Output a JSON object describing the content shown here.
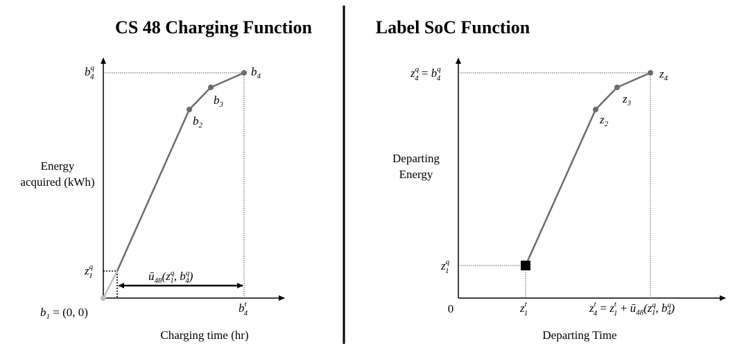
{
  "left_panel": {
    "title": "CS 48 Charging Function",
    "y_axis_label_line1": "Energy",
    "y_axis_label_line2": "acquired (kWh)",
    "x_axis_label": "Charging time (hr)",
    "origin_label": "b1 = (0,0)",
    "point_labels": [
      "b2",
      "b3",
      "b4"
    ],
    "y_tick_top": "b4^q",
    "y_tick_low": "z1^q",
    "x_tick": "b4^t",
    "duration_label": "ū48(z1^q, b4^q)"
  },
  "right_panel": {
    "title": "Label SoC Function",
    "y_axis_label_line1": "Departing",
    "y_axis_label_line2": "Energy",
    "x_axis_label": "Departing Time",
    "origin_label": "0",
    "point_labels": [
      "z2",
      "z3",
      "z4"
    ],
    "y_tick_top": "z4^q = b4^q",
    "y_tick_low": "z1^q",
    "x_tick_1": "z1^t",
    "x_tick_2": "z4^t = z1^t + ū48(z1^q, b4^q)"
  },
  "colors": {
    "curve": "#6b6b6b",
    "axis": "#000000",
    "guide": "#555555",
    "divider": "#000000"
  }
}
